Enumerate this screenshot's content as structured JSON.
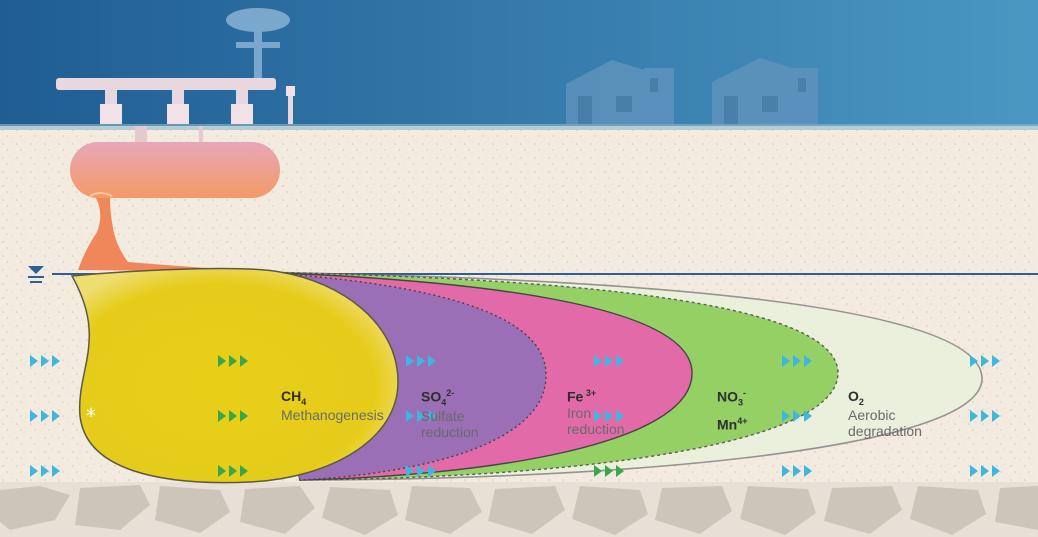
{
  "colors": {
    "sky_top": "#1f5d93",
    "sky_bottom": "#3f8dbb",
    "soil": "#f3ebe0",
    "bedrock": "#cfc6bc",
    "water_table": "#2f5f9a",
    "methanogenesis": "#e6cc1a",
    "sulfate": "#9a6fb5",
    "iron": "#e36aa8",
    "nitrate": "#8fcf5a",
    "aerobic": "#d8ecc0",
    "arrow_blue": "#3fb6df",
    "arrow_green": "#3aa64a",
    "source": "#f0875a"
  },
  "zones": [
    {
      "id": "methanogenesis",
      "formula": "CH",
      "formula_sub": "4",
      "formula_sup": "",
      "desc": [
        "Methanogenesis"
      ]
    },
    {
      "id": "sulfate",
      "formula": "SO",
      "formula_sub": "4",
      "formula_sup": "2-",
      "desc": [
        "Sulfate",
        "reduction"
      ]
    },
    {
      "id": "iron",
      "formula": "Fe",
      "formula_sub": "",
      "formula_sup": " 3+",
      "desc": [
        "Iron",
        "reduction"
      ]
    },
    {
      "id": "nitrate",
      "formula": "NO",
      "formula_sub": "3",
      "formula_sup": "-",
      "formula2": "Mn",
      "formula2_sup": "4+",
      "desc": []
    },
    {
      "id": "aerobic",
      "formula": "O",
      "formula_sub": "2",
      "formula_sup": "",
      "desc": [
        "Aerobic",
        "degradation"
      ]
    }
  ],
  "marker": "*",
  "icons": [
    "gas-station-icon",
    "storage-tank-icon",
    "house-icon",
    "water-table-icon",
    "flow-arrow-icon"
  ]
}
